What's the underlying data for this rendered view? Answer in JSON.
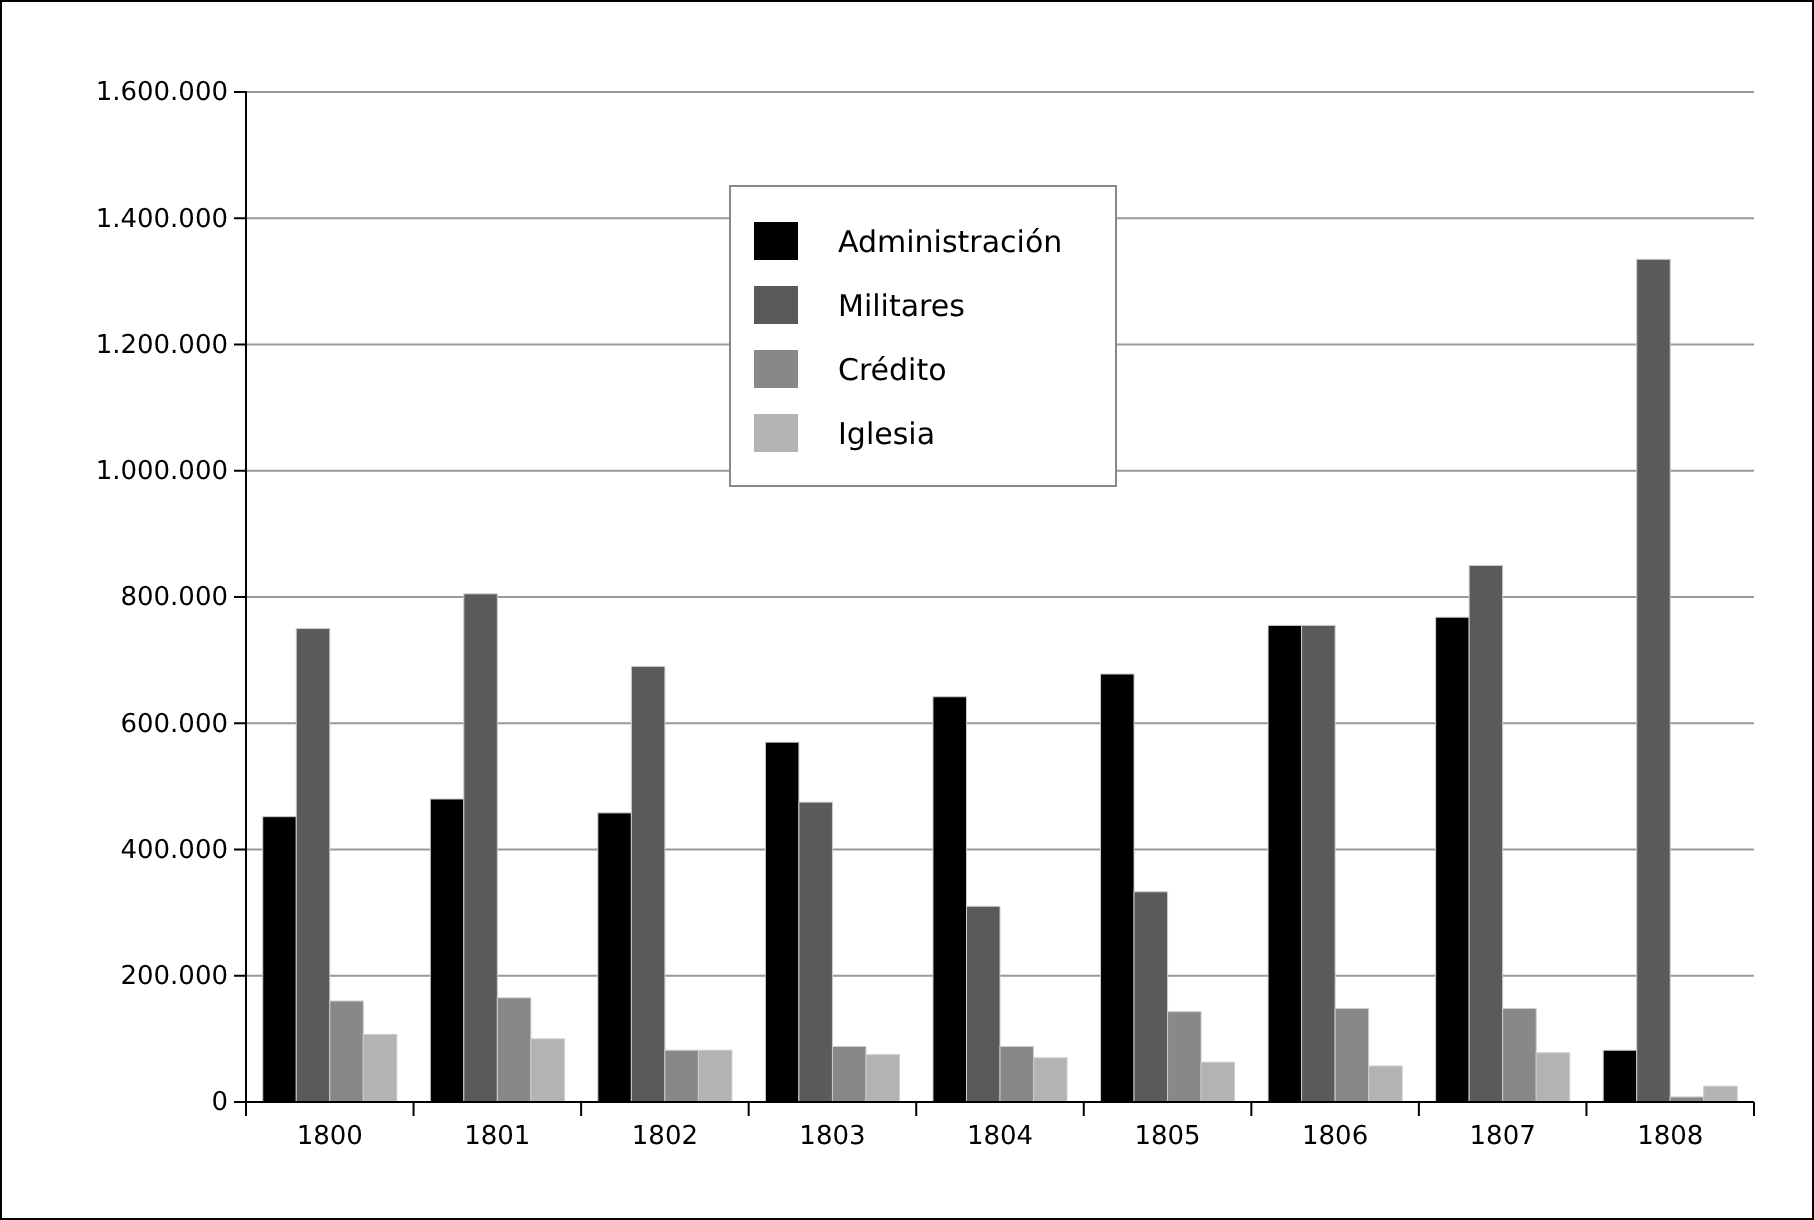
{
  "chart_data": {
    "type": "bar",
    "categories": [
      "1800",
      "1801",
      "1802",
      "1803",
      "1804",
      "1805",
      "1806",
      "1807",
      "1808"
    ],
    "series": [
      {
        "name": "Administración",
        "color": "#000000",
        "values": [
          452000,
          480000,
          458000,
          570000,
          642000,
          678000,
          755000,
          768000,
          82000
        ]
      },
      {
        "name": "Militares",
        "color": "#5a5a58",
        "values": [
          750000,
          805000,
          690000,
          475000,
          310000,
          333000,
          755000,
          850000,
          1335000
        ]
      },
      {
        "name": "Crédito",
        "color": "#888888",
        "values": [
          160000,
          165000,
          82000,
          88000,
          88000,
          143000,
          148000,
          148000,
          8000
        ]
      },
      {
        "name": "Iglesia",
        "color": "#b3b3b3",
        "values": [
          107000,
          100000,
          82000,
          75000,
          70000,
          63000,
          57000,
          78000,
          25000
        ]
      }
    ],
    "ylim": [
      0,
      1600000
    ],
    "yticks": [
      {
        "value": 0,
        "label": "0"
      },
      {
        "value": 200000,
        "label": "200.000"
      },
      {
        "value": 400000,
        "label": "400.000"
      },
      {
        "value": 600000,
        "label": "600.000"
      },
      {
        "value": 800000,
        "label": "800.000"
      },
      {
        "value": 1000000,
        "label": "1.000.000"
      },
      {
        "value": 1200000,
        "label": "1.200.000"
      },
      {
        "value": 1400000,
        "label": "1.400.000"
      },
      {
        "value": 1600000,
        "label": "1.600.000"
      }
    ],
    "grid": "y",
    "legend": "top"
  }
}
